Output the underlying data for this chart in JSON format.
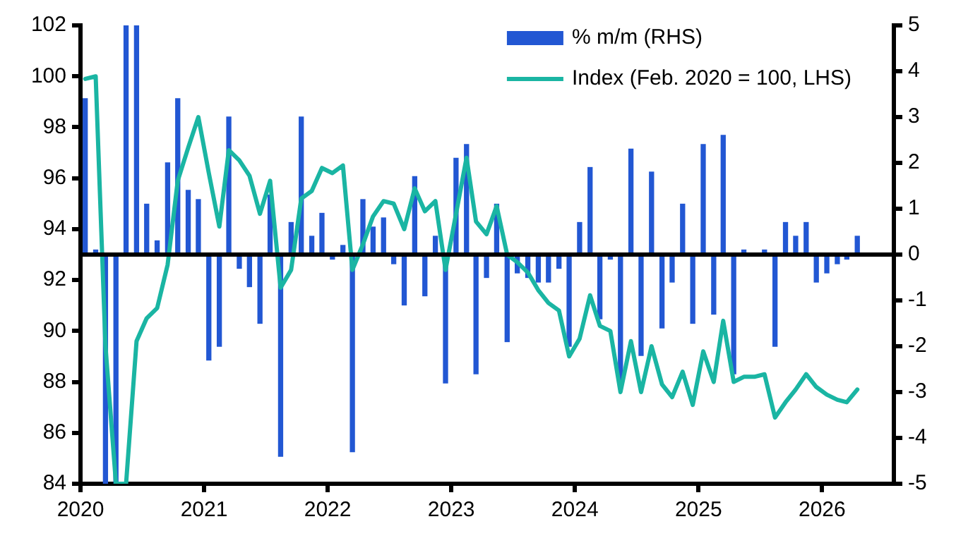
{
  "chart_data": {
    "type": "bar",
    "x": [
      "2020-01-15",
      "2020-02-15",
      "2020-03-15",
      "2020-04-15",
      "2020-05-15",
      "2020-06-15",
      "2020-07-15",
      "2020-08-15",
      "2020-09-15",
      "2020-10-15",
      "2020-11-15",
      "2020-12-15",
      "2021-01-15",
      "2021-02-15",
      "2021-03-15",
      "2021-04-15",
      "2021-05-15",
      "2021-06-15",
      "2021-07-15",
      "2021-08-15",
      "2021-09-15",
      "2021-10-15",
      "2021-11-15",
      "2021-12-15",
      "2022-01-15",
      "2022-02-15",
      "2022-03-15",
      "2022-04-15",
      "2022-05-15",
      "2022-06-15",
      "2022-07-15",
      "2022-08-15",
      "2022-09-15",
      "2022-10-15",
      "2022-11-15",
      "2022-12-15",
      "2023-01-15",
      "2023-02-15",
      "2023-03-15",
      "2023-04-15",
      "2023-05-15",
      "2023-06-15",
      "2023-07-15",
      "2023-08-15",
      "2023-09-15",
      "2023-10-15",
      "2023-11-15",
      "2023-12-15",
      "2024-01-15",
      "2024-02-15",
      "2024-03-15",
      "2024-04-15",
      "2024-05-15",
      "2024-06-15",
      "2024-07-15",
      "2024-08-15",
      "2024-09-15",
      "2024-10-15",
      "2024-11-15",
      "2024-12-15",
      "2025-01-15",
      "2025-02-15",
      "2025-03-15",
      "2025-04-15",
      "2025-05-15",
      "2025-06-15",
      "2025-07-15",
      "2025-08-15",
      "2025-09-15",
      "2025-10-15",
      "2025-11-15",
      "2025-12-15",
      "2026-01-15",
      "2026-02-15",
      "2026-03-15",
      "2026-04-15"
    ],
    "series": [
      {
        "name": "% m/m (RHS)",
        "axis": "y2",
        "color": "#2257d3",
        "values": [
          3.4,
          0.1,
          -5,
          -5,
          5,
          5,
          1.1,
          0.3,
          2.0,
          3.4,
          1.4,
          1.2,
          -2.3,
          -2.0,
          3.0,
          -0.3,
          -0.7,
          -1.5,
          1.3,
          -4.4,
          0.7,
          3.0,
          0.4,
          0.9,
          -0.1,
          0.2,
          -4.3,
          1.2,
          0.6,
          0.8,
          -0.2,
          -1.1,
          1.7,
          -0.9,
          0.4,
          -2.8,
          2.1,
          2.4,
          -2.6,
          -0.5,
          1.1,
          -1.9,
          -0.4,
          -0.5,
          -0.6,
          -0.6,
          -0.3,
          -2.0,
          0.7,
          1.9,
          -1.4,
          -0.1,
          -2.8,
          2.3,
          -2.2,
          1.8,
          -1.6,
          -0.6,
          1.1,
          -1.5,
          2.4,
          -1.3,
          2.6,
          -2.6,
          0.1,
          0,
          0.1,
          -2.0,
          0.7,
          0.4,
          0.7,
          -0.6,
          -0.4,
          -0.2,
          -0.1,
          0.4
        ]
      },
      {
        "name": "Index (Feb. 2020 = 100, LHS)",
        "type": "line",
        "color": "#1ab5a3",
        "values": [
          99.9,
          100,
          89.4,
          84,
          84,
          89.6,
          90.5,
          90.9,
          92.6,
          95.9,
          97.2,
          98.4,
          96.2,
          94.1,
          97.1,
          96.7,
          96.1,
          94.6,
          95.9,
          91.7,
          92.4,
          95.2,
          95.5,
          96.4,
          96.2,
          96.5,
          92.4,
          93.4,
          94.5,
          95.1,
          95.0,
          94.0,
          95.6,
          94.7,
          95.1,
          92.4,
          94.6,
          96.8,
          94.3,
          93.8,
          94.9,
          93.0,
          92.7,
          92.3,
          91.6,
          91.1,
          90.8,
          89.0,
          89.7,
          91.4,
          90.2,
          90.0,
          87.6,
          89.6,
          87.6,
          89.4,
          87.9,
          87.4,
          88.4,
          87.1,
          89.2,
          88.0,
          90.4,
          88.0,
          88.2,
          88.2,
          88.3,
          86.6,
          87.2,
          87.7,
          88.3,
          87.8,
          87.5,
          87.3,
          87.2,
          87.7
        ]
      }
    ],
    "xlim": [
      "2020-01",
      "2026-08"
    ],
    "xticks": [
      "2020",
      "2021",
      "2022",
      "2023",
      "2024",
      "2025",
      "2026"
    ],
    "ylim": [
      84,
      102
    ],
    "yticks": [
      84,
      86,
      88,
      90,
      92,
      94,
      96,
      98,
      100,
      102
    ],
    "y2lim": [
      -5,
      5
    ],
    "y2ticks": [
      -5,
      -4,
      -3,
      -2,
      -1,
      0,
      1,
      2,
      3,
      4,
      5
    ],
    "ref_lines": [
      {
        "axis": "y2",
        "value": 0,
        "color": "#000000"
      }
    ],
    "legend": "top right"
  }
}
